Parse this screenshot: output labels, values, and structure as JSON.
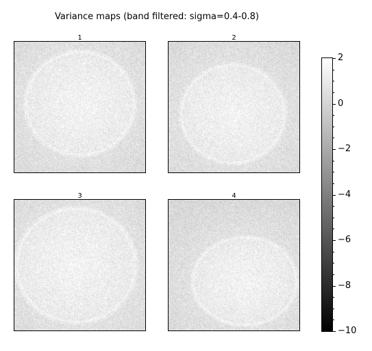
{
  "chart_data": {
    "type": "heatmap",
    "title": "Variance maps (band filtered: sigma=0.4-0.8)",
    "panels": [
      {
        "label": "1"
      },
      {
        "label": "2"
      },
      {
        "label": "3"
      },
      {
        "label": "4"
      }
    ],
    "colorbar": {
      "colormap": "gray",
      "range": [
        -10,
        2
      ],
      "ticks": [
        2,
        0,
        -2,
        -4,
        -6,
        -8,
        -10
      ],
      "tick_labels": [
        "2",
        "0",
        "−2",
        "−4",
        "−6",
        "−8",
        "−10"
      ],
      "minor_ticks": true
    },
    "axes_ticks_visible": false
  }
}
